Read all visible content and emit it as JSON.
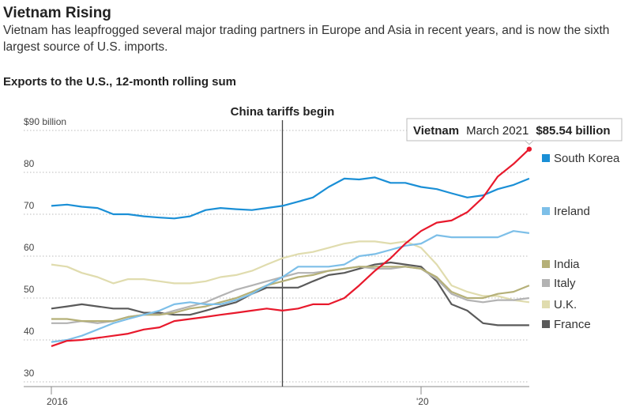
{
  "chart_data": {
    "type": "line",
    "title": "Vietnam Rising",
    "subtitle": "Vietnam has leapfrogged several major trading partners in Europe and Asia in recent years, and is now the sixth largest source of U.S. imports.",
    "y_label": "Exports to the U.S., 12-month rolling sum",
    "x": [
      2016,
      2016.17,
      2016.33,
      2016.5,
      2016.67,
      2016.83,
      2017,
      2017.17,
      2017.33,
      2017.5,
      2017.67,
      2017.83,
      2018,
      2018.17,
      2018.33,
      2018.5,
      2018.67,
      2018.83,
      2019,
      2019.17,
      2019.33,
      2019.5,
      2019.67,
      2019.83,
      2020,
      2020.17,
      2020.33,
      2020.5,
      2020.67,
      2020.83,
      2021,
      2021.17
    ],
    "series": [
      {
        "name": "Vietnam",
        "color": "#e8192c",
        "values": [
          38.5,
          39.8,
          40,
          40.5,
          41,
          41.5,
          42.5,
          43,
          44.5,
          45,
          45.5,
          46,
          46.5,
          47,
          47.5,
          47,
          47.5,
          48.5,
          48.5,
          50,
          53,
          56.5,
          59.5,
          63,
          66,
          68,
          68.5,
          70.5,
          74,
          79,
          82,
          85.54
        ],
        "value_labels": [
          null,
          null,
          null,
          null,
          null,
          null,
          null,
          null,
          null,
          null,
          null,
          null,
          null,
          null,
          null,
          null,
          null,
          null,
          null,
          null,
          null,
          null,
          null,
          null,
          null,
          null,
          null,
          null,
          null,
          null,
          null,
          "$85.54 billion"
        ]
      },
      {
        "name": "South Korea",
        "color": "#1a8fd6",
        "values": [
          72,
          72.3,
          71.8,
          71.5,
          70,
          70,
          69.5,
          69.2,
          69,
          69.5,
          71,
          71.5,
          71.2,
          71,
          71.5,
          72,
          73,
          74,
          76.5,
          78.5,
          78.3,
          78.8,
          77.5,
          77.5,
          76.5,
          76,
          75,
          74,
          74.5,
          76,
          77,
          78.5
        ]
      },
      {
        "name": "Ireland",
        "color": "#7dbfe8",
        "values": [
          39.5,
          40,
          41,
          42.5,
          44,
          45,
          46,
          47,
          48.5,
          49,
          48.5,
          48.5,
          49.5,
          51,
          53,
          55,
          57.5,
          57.5,
          57.5,
          58,
          60,
          60.5,
          61.5,
          62.5,
          63,
          65,
          64.5,
          64.5,
          64.5,
          64.5,
          66,
          65.5
        ]
      },
      {
        "name": "India",
        "color": "#b5b078",
        "values": [
          45,
          45,
          44.5,
          44.5,
          44.5,
          45.5,
          46,
          46,
          46.5,
          47.5,
          48,
          49,
          50,
          51.5,
          53,
          54,
          55,
          55.5,
          56.5,
          57,
          57.5,
          57.5,
          57.5,
          57.5,
          57,
          55,
          51.5,
          50,
          50,
          51,
          51.5,
          53
        ]
      },
      {
        "name": "Italy",
        "color": "#b3b3b3",
        "values": [
          44,
          44,
          44.5,
          44,
          44.5,
          45.5,
          46,
          46,
          47,
          48,
          49,
          50.5,
          52,
          53,
          54,
          55,
          56,
          56,
          56.5,
          57,
          57.5,
          57,
          57,
          57.5,
          57,
          54.5,
          51,
          49.5,
          49,
          49.5,
          49.5,
          50
        ]
      },
      {
        "name": "U.K.",
        "color": "#e0dcae",
        "values": [
          58,
          57.5,
          56,
          55,
          53.5,
          54.5,
          54.5,
          54,
          53.5,
          53.5,
          54,
          55,
          55.5,
          56.5,
          58,
          59.5,
          60.5,
          61,
          62,
          63,
          63.5,
          63.5,
          63,
          63.5,
          62,
          58,
          53,
          51.5,
          50.5,
          50.5,
          49.5,
          49
        ]
      },
      {
        "name": "France",
        "color": "#5a5a5a",
        "values": [
          47.5,
          48,
          48.5,
          48,
          47.5,
          47.5,
          46.5,
          46.5,
          46,
          46,
          47,
          48,
          49,
          51,
          52.5,
          52.5,
          52.5,
          54,
          55.5,
          56,
          57,
          58,
          58.5,
          58,
          57.5,
          54,
          48.5,
          47,
          44,
          43.5,
          43.5,
          43.5
        ]
      }
    ],
    "xlim": [
      2015.95,
      2021.2
    ],
    "xticks": [
      2016,
      {
        "value": 2020,
        "label": "'20"
      }
    ],
    "ylim": [
      30,
      90
    ],
    "yticks": [
      30,
      40,
      50,
      60,
      70,
      80,
      {
        "value": 90,
        "label": "$90 billion"
      }
    ],
    "grid": true,
    "annotations": [
      {
        "text": "China tariffs begin",
        "x": 2018.5
      },
      {
        "text": "March 2021"
      }
    ]
  }
}
